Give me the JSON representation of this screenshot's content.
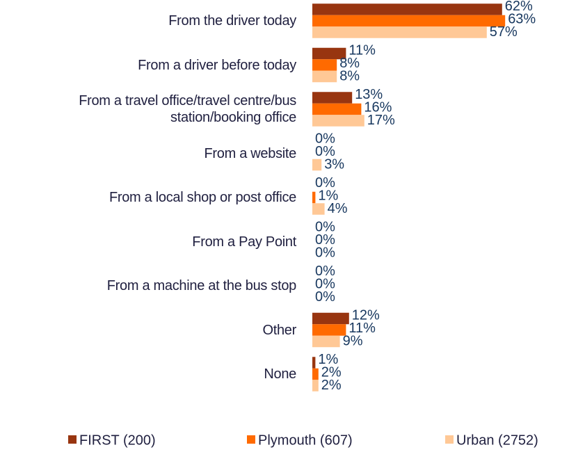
{
  "chart_data": {
    "type": "hbar",
    "categories": [
      "From the driver today",
      "From a driver before today",
      "From a travel office/travel centre/bus station/booking office",
      "From a website",
      "From a local shop or post office",
      "From a Pay Point",
      "From a machine at the bus stop",
      "Other",
      "None"
    ],
    "series": [
      {
        "name": "FIRST (200)",
        "color": "#983510",
        "values": [
          62,
          11,
          13,
          0,
          0,
          0,
          0,
          12,
          1
        ],
        "value_labels": [
          "62%",
          "11%",
          "13%",
          "0%",
          "0%",
          "0%",
          "0%",
          "12%",
          "1%"
        ]
      },
      {
        "name": "Plymouth (607)",
        "color": "#ff6a00",
        "values": [
          63,
          8,
          16,
          0,
          1,
          0,
          0,
          11,
          2
        ],
        "value_labels": [
          "63%",
          "8%",
          "16%",
          "0%",
          "1%",
          "0%",
          "0%",
          "11%",
          "2%"
        ]
      },
      {
        "name": "Urban (2752)",
        "color": "#ffc896",
        "values": [
          57,
          8,
          17,
          3,
          4,
          0,
          0,
          9,
          2
        ],
        "value_labels": [
          "57%",
          "8%",
          "17%",
          "3%",
          "4%",
          "0%",
          "0%",
          "9%",
          "2%"
        ]
      }
    ],
    "xlim": [
      0,
      70
    ],
    "legend": "bottom"
  }
}
